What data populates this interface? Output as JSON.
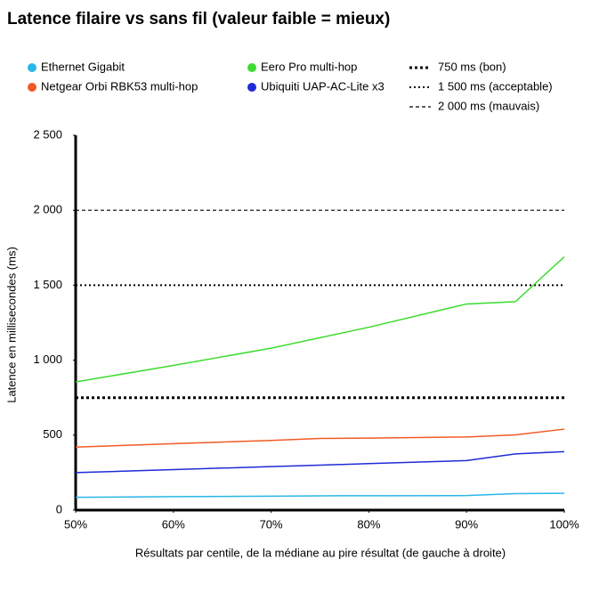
{
  "chart_data": {
    "type": "line",
    "title": "Latence filaire vs sans fil (valeur faible = mieux)",
    "x_label": "Résultats par centile, de la médiane au pire résultat (de gauche à droite)",
    "y_label": "Latence en millisecondes (ms)",
    "x": [
      50,
      60,
      70,
      75,
      80,
      90,
      95,
      100
    ],
    "series": [
      {
        "name": "Ethernet Gigabit",
        "color": "#29b6e8",
        "values": [
          85,
          90,
          93,
          95,
          96,
          97,
          110,
          112
        ]
      },
      {
        "name": "Netgear Orbi RBK53 multi-hop",
        "color": "#f15a24",
        "values": [
          420,
          443,
          465,
          478,
          480,
          488,
          502,
          540
        ]
      },
      {
        "name": "Eero Pro multi-hop",
        "color": "#3ddc2f",
        "values": [
          855,
          965,
          1080,
          1150,
          1220,
          1375,
          1390,
          1690
        ]
      },
      {
        "name": "Ubiquiti UAP-AC-Lite x3",
        "color": "#1f2bd6",
        "values": [
          250,
          270,
          290,
          300,
          310,
          330,
          375,
          390
        ]
      }
    ],
    "reference_lines": [
      {
        "name": "750 ms (bon)",
        "value": 750,
        "style": "thick-dotted"
      },
      {
        "name": "1 500 ms (acceptable)",
        "value": 1500,
        "style": "dotted"
      },
      {
        "name": "2 000 ms (mauvais)",
        "value": 2000,
        "style": "dashed"
      }
    ],
    "xlim": [
      50,
      100
    ],
    "xticks": [
      {
        "value": 50,
        "label": "50%"
      },
      {
        "value": 60,
        "label": "60%"
      },
      {
        "value": 70,
        "label": "70%"
      },
      {
        "value": 80,
        "label": "80%"
      },
      {
        "value": 90,
        "label": "90%"
      },
      {
        "value": 100,
        "label": "100%"
      }
    ],
    "ylim": [
      0,
      2500
    ],
    "yticks": [
      0,
      {
        "value": 500,
        "label": "500"
      },
      {
        "value": 1000,
        "label": "1 000"
      },
      {
        "value": 1500,
        "label": "1 500"
      },
      {
        "value": 2000,
        "label": "2 000"
      },
      {
        "value": 2500,
        "label": "2 500"
      }
    ]
  }
}
